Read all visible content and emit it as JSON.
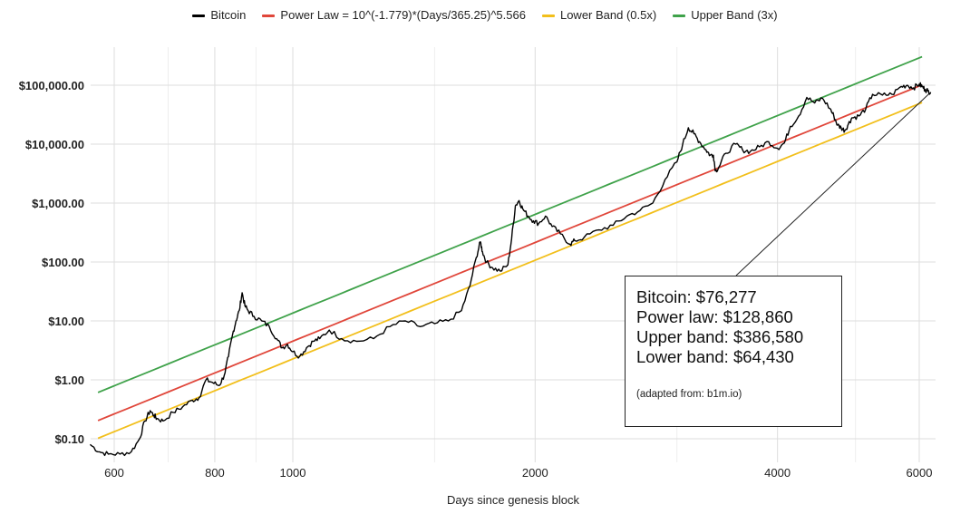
{
  "legend": [
    {
      "label": "Bitcoin",
      "color": "#000000"
    },
    {
      "label": "Power Law = 10^(-1.779)*(Days/365.25)^5.566",
      "color": "#e0463a"
    },
    {
      "label": "Lower Band (0.5x)",
      "color": "#f2bf1b"
    },
    {
      "label": "Upper Band (3x)",
      "color": "#3fa24a"
    }
  ],
  "annotation": {
    "lines": [
      "Bitcoin: $76,277",
      "Power law: $128,860",
      "Upper band: $386,580",
      "Lower band: $64,430"
    ],
    "source": "(adapted from: b1m.io)"
  },
  "chart_data": {
    "type": "line",
    "xlabel": "Days since genesis block",
    "ylabel": "",
    "xscale": "log",
    "yscale": "log",
    "xlim": [
      550,
      6300
    ],
    "ylim": [
      0.05,
      400000
    ],
    "grid": true,
    "legend_position": "top",
    "x_ticks": [
      600,
      800,
      1000,
      2000,
      4000,
      6000
    ],
    "x_tick_labels": [
      "600",
      "800",
      "1000",
      "2000",
      "4000",
      "6000"
    ],
    "y_ticks": [
      0.1,
      1,
      10,
      100,
      1000,
      10000,
      100000
    ],
    "y_tick_labels": [
      "$0.10",
      "$1.00",
      "$10.00",
      "$100.00",
      "$1,000.00",
      "$10,000.00",
      "$100,000.00"
    ],
    "series": [
      {
        "name": "Bitcoin",
        "color": "#000000",
        "x": [
          560,
          575,
          590,
          610,
          630,
          645,
          655,
          665,
          672,
          678,
          690,
          710,
          730,
          750,
          765,
          780,
          795,
          810,
          822,
          832,
          842,
          850,
          858,
          865,
          872,
          880,
          895,
          915,
          935,
          955,
          970,
          985,
          1000,
          1020,
          1040,
          1060,
          1080,
          1110,
          1150,
          1200,
          1260,
          1320,
          1380,
          1440,
          1500,
          1560,
          1620,
          1660,
          1690,
          1710,
          1720,
          1740,
          1770,
          1810,
          1850,
          1870,
          1890,
          1910,
          1930,
          1960,
          1990,
          2020,
          2060,
          2100,
          2150,
          2210,
          2240,
          2300,
          2400,
          2500,
          2600,
          2700,
          2800,
          2900,
          3000,
          3050,
          3100,
          3150,
          3200,
          3260,
          3300,
          3330,
          3350,
          3380,
          3450,
          3550,
          3620,
          3700,
          3800,
          3900,
          4000,
          4080,
          4150,
          4250,
          4350,
          4450,
          4550,
          4650,
          4700,
          4750,
          4800,
          4850,
          4900,
          4950,
          5050,
          5150,
          5250,
          5400,
          5550,
          5700,
          5800,
          5900,
          6000,
          6050,
          6100,
          6150,
          6200
        ],
        "values": [
          0.08,
          0.06,
          0.055,
          0.055,
          0.06,
          0.1,
          0.2,
          0.3,
          0.25,
          0.22,
          0.2,
          0.28,
          0.35,
          0.45,
          0.5,
          1.0,
          0.9,
          0.8,
          1.2,
          2.5,
          6,
          10,
          15,
          30,
          18,
          15,
          12,
          10,
          8,
          5,
          3.5,
          4,
          3,
          2.5,
          3.5,
          4.5,
          5,
          7,
          5,
          4.5,
          5,
          8,
          10,
          8,
          9,
          10,
          15,
          40,
          120,
          220,
          150,
          100,
          80,
          70,
          90,
          250,
          900,
          1100,
          800,
          600,
          500,
          450,
          600,
          400,
          300,
          200,
          230,
          260,
          350,
          420,
          600,
          750,
          1000,
          2500,
          5000,
          10000,
          19000,
          15000,
          11000,
          8000,
          6500,
          6500,
          3500,
          4000,
          7000,
          10000,
          8000,
          7500,
          9000,
          11000,
          8500,
          10500,
          20000,
          30000,
          62000,
          50000,
          60000,
          40000,
          30000,
          21000,
          19000,
          17000,
          22000,
          28000,
          30000,
          40000,
          70000,
          68000,
          70000,
          95000,
          100000,
          90000,
          104000,
          95000,
          85000,
          80000,
          76277
        ]
      },
      {
        "name": "Power Law = 10^(-1.779)*(Days/365.25)^5.566",
        "color": "#e0463a",
        "formula": "10^(-1.779)*(Days/365.25)^5.566",
        "multiplier": 1
      },
      {
        "name": "Lower Band (0.5x)",
        "color": "#f2bf1b",
        "formula": "0.5 * Power Law",
        "multiplier": 0.5
      },
      {
        "name": "Upper Band (3x)",
        "color": "#3fa24a",
        "formula": "3 * Power Law",
        "multiplier": 3
      }
    ]
  }
}
